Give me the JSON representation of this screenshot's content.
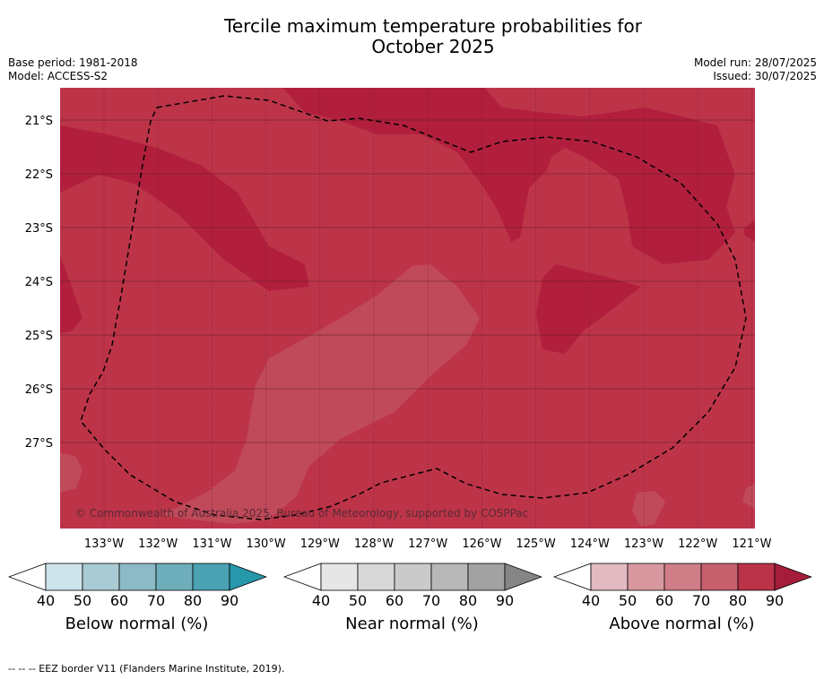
{
  "title_line1": "Tercile maximum temperature probabilities for",
  "title_line2": "October 2025",
  "base_period": "Base period: 1981-2018",
  "model": "Model: ACCESS-S2",
  "model_run": "Model run: 28/07/2025",
  "issued": "Issued: 30/07/2025",
  "map": {
    "lon_labels": [
      "133°W",
      "132°W",
      "131°W",
      "130°W",
      "129°W",
      "128°W",
      "127°W",
      "126°W",
      "125°W",
      "124°W",
      "123°W",
      "122°W",
      "121°W"
    ],
    "lat_labels": [
      "21°S",
      "22°S",
      "23°S",
      "24°S",
      "25°S",
      "26°S",
      "27°S"
    ],
    "copyright": "© Commonwealth of Australia 2025, Bureau of Meteorology, supported by COSPPac",
    "colors": {
      "above_70": "#bd3449",
      "above_80": "#b21f3d",
      "above_60": "#c04a5a"
    }
  },
  "colorbars": [
    {
      "label": "Below normal (%)",
      "ticks": [
        "40",
        "50",
        "60",
        "70",
        "80",
        "90"
      ],
      "colors": [
        "#cce3e9",
        "#a9cbd3",
        "#8cbac6",
        "#6eaebb",
        "#4aa2b3",
        "#2797ac"
      ]
    },
    {
      "label": "Near normal (%)",
      "ticks": [
        "40",
        "50",
        "60",
        "70",
        "80",
        "90"
      ],
      "colors": [
        "#e6e6e6",
        "#d8d8d8",
        "#cacaca",
        "#b8b8b8",
        "#a2a2a2",
        "#858585"
      ]
    },
    {
      "label": "Above normal (%)",
      "ticks": [
        "40",
        "50",
        "60",
        "70",
        "80",
        "90"
      ],
      "colors": [
        "#e3bac1",
        "#d8989f",
        "#cf7d86",
        "#c5606c",
        "#bb3348",
        "#a51d3a"
      ]
    }
  ],
  "footnote": "--  --  -- EEZ border V11 (Flanders Marine Institute, 2019)."
}
